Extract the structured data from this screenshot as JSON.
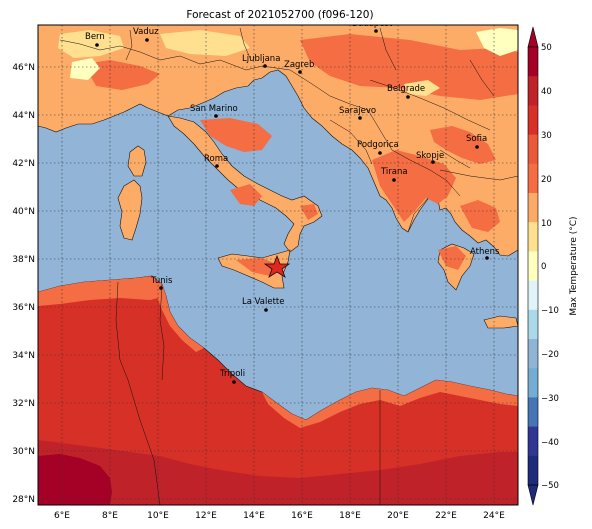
{
  "title": "Forecast of 2021052700 (f096-120)",
  "lat_ticks": [
    "28°N",
    "30°N",
    "32°N",
    "34°N",
    "36°N",
    "38°N",
    "40°N",
    "42°N",
    "44°N",
    "46°N"
  ],
  "lon_ticks": [
    "6°E",
    "8°E",
    "10°E",
    "12°E",
    "14°E",
    "16°E",
    "18°E",
    "20°E",
    "22°E",
    "24°E"
  ],
  "cities": [
    {
      "name": "Bern"
    },
    {
      "name": "Vaduz"
    },
    {
      "name": "Budapest"
    },
    {
      "name": "Ljubljana"
    },
    {
      "name": "Zagreb"
    },
    {
      "name": "Belgrade"
    },
    {
      "name": "San Marino"
    },
    {
      "name": "Sarajevo"
    },
    {
      "name": "Sofia"
    },
    {
      "name": "Podgorica"
    },
    {
      "name": "Skopje"
    },
    {
      "name": "Roma"
    },
    {
      "name": "Tirana"
    },
    {
      "name": "Athens"
    },
    {
      "name": "Tunis"
    },
    {
      "name": "La Valette"
    },
    {
      "name": "Tripoli"
    }
  ],
  "colorbar": {
    "label": "Max Temperature (°C)",
    "tick_labels": [
      "50",
      "40",
      "30",
      "20",
      "10",
      "0",
      "−10",
      "−20",
      "−30",
      "−40",
      "−50"
    ],
    "colors_top_to_bottom": [
      "#a50026",
      "#c0222a",
      "#d73027",
      "#ea5a3a",
      "#f46d43",
      "#fcab66",
      "#fee090",
      "#ffffbf",
      "#e0f3f8",
      "#abd9e9",
      "#90b4d6",
      "#74add1",
      "#4575b4",
      "#313695",
      "#1e2a7a"
    ]
  },
  "legend_colors": {
    "sea": "#91b4d7",
    "land_20_25": "#fdac68",
    "land_25_30": "#f46d43",
    "land_30_35": "#d73027",
    "land_35_40": "#c0222a",
    "land_40_45": "#a50026",
    "land_15_20": "#fee090",
    "land_10_15": "#ffffbf"
  }
}
